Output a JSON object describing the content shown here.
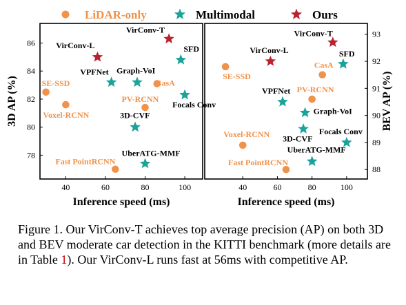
{
  "legend": {
    "entries": [
      {
        "label": "LiDAR-only",
        "marker": "circle",
        "color": "#F0924A",
        "text_color": "#F0924A"
      },
      {
        "label": "Multimodal",
        "marker": "star",
        "color": "#1AA39A",
        "text_color": "#000000"
      },
      {
        "label": "Ours",
        "marker": "star",
        "color": "#B8232F",
        "text_color": "#000000"
      }
    ]
  },
  "colors": {
    "lidar": "#F0924A",
    "multimodal": "#1AA39A",
    "ours": "#B8232F"
  },
  "chart_data": [
    {
      "type": "scatter",
      "xlabel": "Inference speed (ms)",
      "ylabel": "3D AP (%)",
      "xlim": [
        27,
        109
      ],
      "ylim": [
        76.3,
        87.4
      ],
      "xticks": [
        "40",
        "60",
        "80",
        "100"
      ],
      "yticks": [
        "78",
        "80",
        "82",
        "84",
        "86"
      ],
      "points": [
        {
          "label": "VirConv-T",
          "x": 92,
          "y": 86.3,
          "group": "ours"
        },
        {
          "label": "VirConv-L",
          "x": 56,
          "y": 85.0,
          "group": "ours"
        },
        {
          "label": "SFD",
          "x": 98,
          "y": 84.8,
          "group": "multimodal"
        },
        {
          "label": "VPFNet",
          "x": 63,
          "y": 83.2,
          "group": "multimodal"
        },
        {
          "label": "Graph-VoI",
          "x": 76,
          "y": 83.2,
          "group": "multimodal"
        },
        {
          "label": "Focals Conv",
          "x": 100,
          "y": 82.3,
          "group": "multimodal"
        },
        {
          "label": "3D-CVF",
          "x": 75,
          "y": 80.0,
          "group": "multimodal"
        },
        {
          "label": "UberATG-MMF",
          "x": 80,
          "y": 77.4,
          "group": "multimodal"
        },
        {
          "label": "CasA",
          "x": 86,
          "y": 83.1,
          "group": "lidar"
        },
        {
          "label": "SE-SSD",
          "x": 30,
          "y": 82.5,
          "group": "lidar"
        },
        {
          "label": "Voxel-RCNN",
          "x": 40,
          "y": 81.6,
          "group": "lidar"
        },
        {
          "label": "PV-RCNN",
          "x": 80,
          "y": 81.4,
          "group": "lidar"
        },
        {
          "label": "Fast PointRCNN",
          "x": 65,
          "y": 77.0,
          "group": "lidar"
        }
      ]
    },
    {
      "type": "scatter",
      "xlabel": "Inference speed (ms)",
      "ylabel": "BEV AP (%)",
      "xlim": [
        18,
        112
      ],
      "ylim": [
        87.65,
        93.4
      ],
      "xticks": [
        "40",
        "60",
        "80",
        "100"
      ],
      "yticks": [
        "88",
        "89",
        "90",
        "91",
        "92",
        "93"
      ],
      "points": [
        {
          "label": "VirConv-T",
          "x": 92,
          "y": 92.7,
          "group": "ours"
        },
        {
          "label": "VirConv-L",
          "x": 56,
          "y": 92.0,
          "group": "ours"
        },
        {
          "label": "SFD",
          "x": 98,
          "y": 91.9,
          "group": "multimodal"
        },
        {
          "label": "VPFNet",
          "x": 63,
          "y": 90.5,
          "group": "multimodal"
        },
        {
          "label": "Graph-VoI",
          "x": 76,
          "y": 90.1,
          "group": "multimodal"
        },
        {
          "label": "3D-CVF",
          "x": 75,
          "y": 89.5,
          "group": "multimodal"
        },
        {
          "label": "Focals Conv",
          "x": 100,
          "y": 89.0,
          "group": "multimodal"
        },
        {
          "label": "UberATG-MMF",
          "x": 80,
          "y": 88.3,
          "group": "multimodal"
        },
        {
          "label": "SE-SSD",
          "x": 30,
          "y": 91.8,
          "group": "lidar"
        },
        {
          "label": "CasA",
          "x": 86,
          "y": 91.5,
          "group": "lidar"
        },
        {
          "label": "PV-RCNN",
          "x": 80,
          "y": 90.6,
          "group": "lidar"
        },
        {
          "label": "Voxel-RCNN",
          "x": 40,
          "y": 88.9,
          "group": "lidar"
        },
        {
          "label": "Fast PointRCNN",
          "x": 65,
          "y": 88.0,
          "group": "lidar"
        }
      ]
    }
  ],
  "caption": {
    "before_ref": "Figure 1. Our VirConv-T achieves top average precision (AP) on both 3D and BEV moderate car detection in the KITTI benchmark (more details are in Table ",
    "ref": "1",
    "after_ref": "). Our VirConv-L runs fast at 56ms with competitive AP."
  }
}
